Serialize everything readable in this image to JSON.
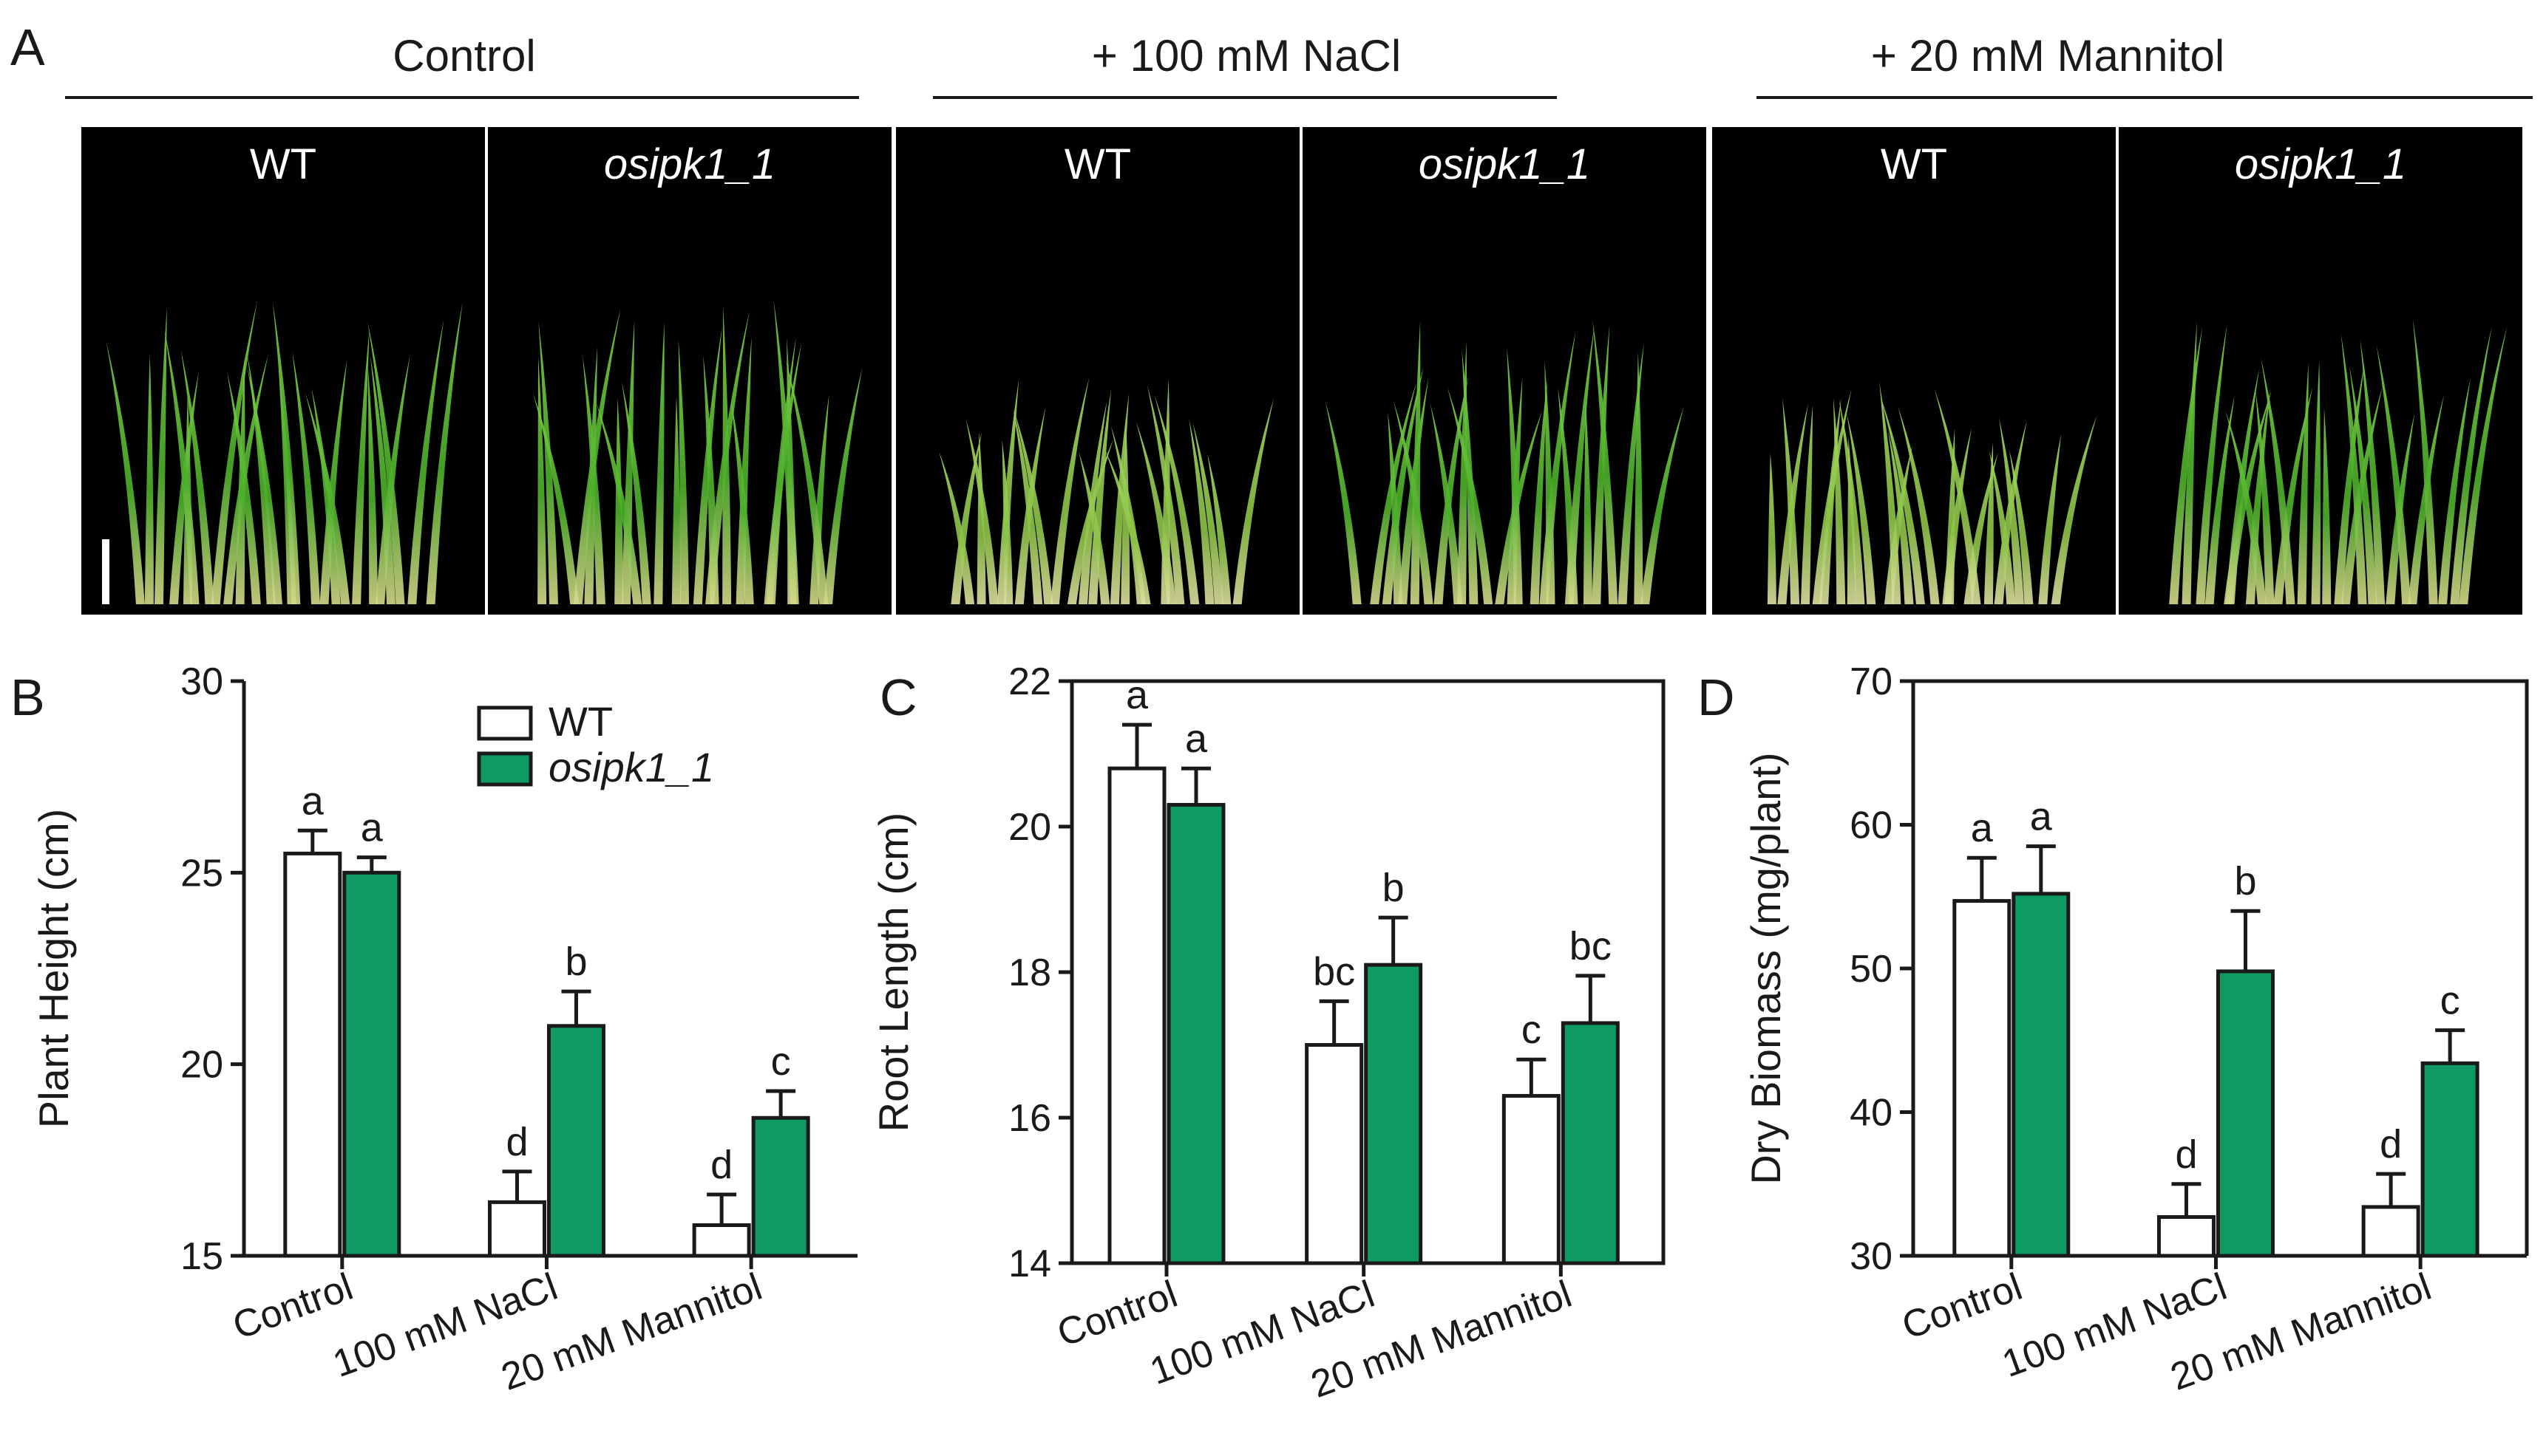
{
  "panel_a": {
    "letter": "A",
    "groups": [
      {
        "label": "Control",
        "photos": [
          {
            "label": "WT",
            "italic": false,
            "severity": "control"
          },
          {
            "label": "osipk1_1",
            "italic": true,
            "severity": "control"
          }
        ]
      },
      {
        "label": "+ 100 mM NaCl",
        "photos": [
          {
            "label": "WT",
            "italic": false,
            "severity": "stress-wt"
          },
          {
            "label": "osipk1_1",
            "italic": true,
            "severity": "stress-mut"
          }
        ]
      },
      {
        "label": "+ 20 mM Mannitol",
        "photos": [
          {
            "label": "WT",
            "italic": false,
            "severity": "stress-wt"
          },
          {
            "label": "osipk1_1",
            "italic": true,
            "severity": "stress-mut"
          }
        ]
      }
    ]
  },
  "legend": {
    "items": [
      {
        "label": "WT",
        "color": "#ffffff",
        "italic": false
      },
      {
        "label": "osipk1_1",
        "color": "#0e9a62",
        "italic": true
      }
    ]
  },
  "colors": {
    "wt": "#ffffff",
    "mutant": "#0e9a62",
    "axis": "#1a1a1a",
    "photo_bg": "#000000"
  },
  "chart_data": [
    {
      "type": "bar",
      "panel": "B",
      "title": "",
      "ylabel": "Plant Height (cm)",
      "xlabel": "",
      "ylim": [
        15,
        30
      ],
      "yticks": [
        15,
        20,
        25,
        30
      ],
      "categories": [
        "Control",
        "100 mM NaCl",
        "20 mM Mannitol"
      ],
      "series": [
        {
          "name": "WT",
          "values": [
            25.5,
            16.4,
            15.8
          ],
          "errors": [
            0.6,
            0.8,
            0.8
          ],
          "labels": [
            "a",
            "d",
            "d"
          ]
        },
        {
          "name": "osipk1_1",
          "values": [
            25.0,
            21.0,
            18.6
          ],
          "errors": [
            0.4,
            0.9,
            0.7
          ],
          "labels": [
            "a",
            "b",
            "c"
          ]
        }
      ]
    },
    {
      "type": "bar",
      "panel": "C",
      "title": "",
      "ylabel": "Root Length (cm)",
      "xlabel": "",
      "ylim": [
        14,
        22
      ],
      "yticks": [
        14,
        16,
        18,
        20,
        22
      ],
      "categories": [
        "Control",
        "100 mM NaCl",
        "20 mM Mannitol"
      ],
      "series": [
        {
          "name": "WT",
          "values": [
            20.8,
            17.0,
            16.3
          ],
          "errors": [
            0.6,
            0.6,
            0.5
          ],
          "labels": [
            "a",
            "bc",
            "c"
          ]
        },
        {
          "name": "osipk1_1",
          "values": [
            20.3,
            18.1,
            17.3
          ],
          "errors": [
            0.5,
            0.65,
            0.65
          ],
          "labels": [
            "a",
            "b",
            "bc"
          ]
        }
      ]
    },
    {
      "type": "bar",
      "panel": "D",
      "title": "",
      "ylabel": "Dry Biomass (mg/plant)",
      "xlabel": "",
      "ylim": [
        30,
        70
      ],
      "yticks": [
        30,
        40,
        50,
        60,
        70
      ],
      "categories": [
        "Control",
        "100 mM NaCl",
        "20 mM Mannitol"
      ],
      "series": [
        {
          "name": "WT",
          "values": [
            54.7,
            32.7,
            33.4
          ],
          "errors": [
            3.0,
            2.3,
            2.3
          ],
          "labels": [
            "a",
            "d",
            "d"
          ]
        },
        {
          "name": "osipk1_1",
          "values": [
            55.2,
            49.8,
            43.4
          ],
          "errors": [
            3.3,
            4.2,
            2.3
          ],
          "labels": [
            "a",
            "b",
            "c"
          ]
        }
      ]
    }
  ]
}
